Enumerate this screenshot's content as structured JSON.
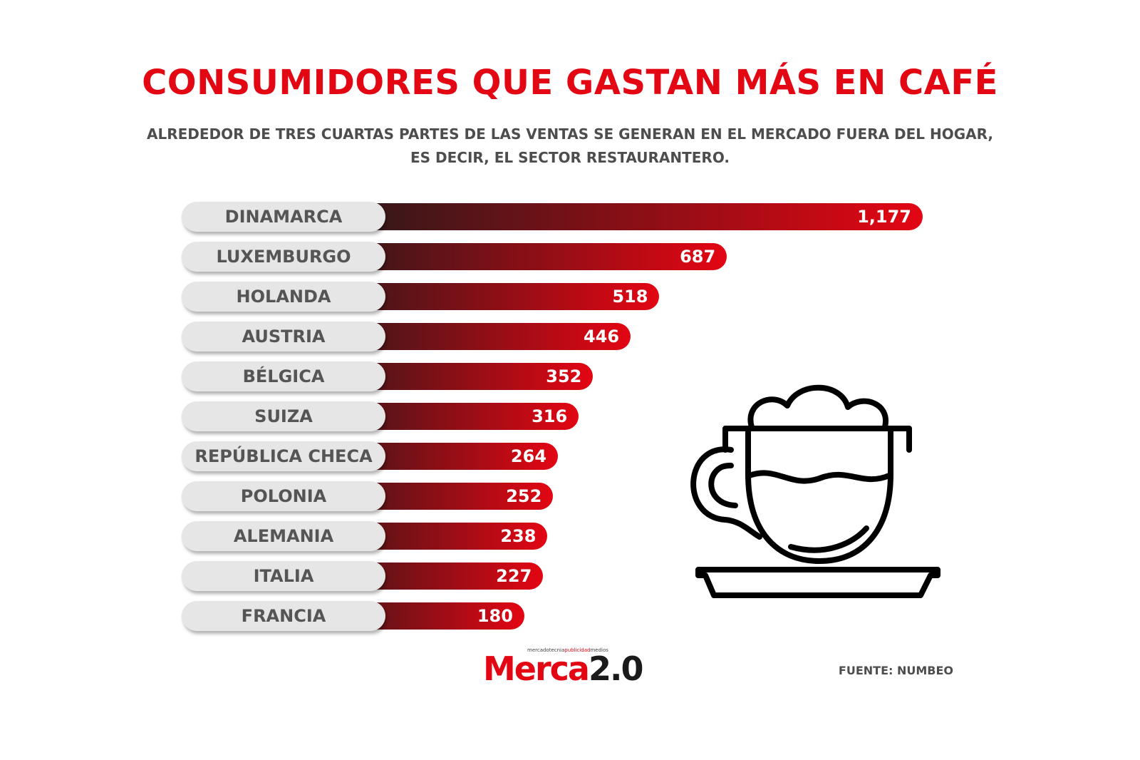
{
  "title": "CONSUMIDORES QUE GASTAN MÁS EN CAFÉ",
  "subtitle_lines": [
    "ALREDEDOR DE TRES CUARTAS PARTES DE LAS VENTAS SE GENERAN EN EL MERCADO FUERA DEL HOGAR,",
    "ES DECIR, EL SECTOR RESTAURANTERO."
  ],
  "chart_data": {
    "type": "bar",
    "orientation": "horizontal",
    "categories": [
      "DINAMARCA",
      "LUXEMBURGO",
      "HOLANDA",
      "AUSTRIA",
      "BÉLGICA",
      "SUIZA",
      "REPÚBLICA CHECA",
      "POLONIA",
      "ALEMANIA",
      "ITALIA",
      "FRANCIA"
    ],
    "values": [
      1177,
      687,
      518,
      446,
      352,
      316,
      264,
      252,
      238,
      227,
      180
    ],
    "value_labels": [
      "1,177",
      "687",
      "518",
      "446",
      "352",
      "316",
      "264",
      "252",
      "238",
      "227",
      "180"
    ],
    "title": "CONSUMIDORES QUE GASTAN MÁS EN CAFÉ",
    "xlabel": "",
    "ylabel": "",
    "grid": false
  },
  "colors": {
    "accent": "#e30613",
    "bar_start": "#1e1a1a",
    "pill": "#e6e6e6",
    "text_gray": "#4d4d4d"
  },
  "icons": {
    "illustration": "coffee-cup-icon"
  },
  "logo": {
    "tag_start": "mercadotecnia",
    "tag_mid": "publicidad",
    "tag_end": "medios",
    "name_red": "Merca",
    "name_dark": "2.0"
  },
  "source": "FUENTE: NUMBEO"
}
